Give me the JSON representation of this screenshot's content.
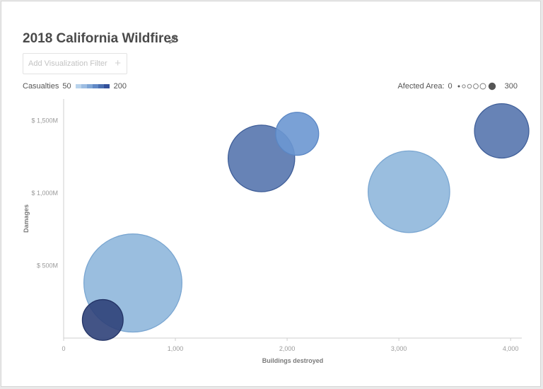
{
  "title": "2018 California Wildfires",
  "filter": {
    "placeholder": "Add Visualization Filter",
    "plus": "+"
  },
  "legend": {
    "casualties_label": "Casualties",
    "casualties_min": "50",
    "casualties_max": "200",
    "casualties_colors": [
      "#b9d3ec",
      "#9dbde2",
      "#7fa6d6",
      "#6189c6",
      "#4a6fb1",
      "#33509a"
    ],
    "area_label": "Afected Area:",
    "area_min": "0",
    "area_max": "300"
  },
  "chart_data": {
    "type": "scatter",
    "title": "2018 California Wildfires",
    "xlabel": "Buildings destroyed",
    "ylabel": "Damages",
    "xlim": [
      0,
      4100
    ],
    "ylim": [
      0,
      1650
    ],
    "x_ticks": [
      {
        "value": 0,
        "label": "0"
      },
      {
        "value": 1000,
        "label": "1,000"
      },
      {
        "value": 2000,
        "label": "2,000"
      },
      {
        "value": 3000,
        "label": "3,000"
      },
      {
        "value": 4000,
        "label": "4,000"
      }
    ],
    "y_ticks": [
      {
        "value": 500,
        "label": "$ 500M"
      },
      {
        "value": 1000,
        "label": "$ 1,000M"
      },
      {
        "value": 1500,
        "label": "$ 1,500M"
      }
    ],
    "points": [
      {
        "x": 620,
        "y": 380,
        "size": 260,
        "color": "#8fb7dc",
        "stroke": "#7aa6d1"
      },
      {
        "x": 1770,
        "y": 1240,
        "size": 120,
        "color": "#5676ae",
        "stroke": "#3f5e98"
      },
      {
        "x": 2090,
        "y": 1410,
        "size": 50,
        "color": "#6c97d2",
        "stroke": "#5a86c4"
      },
      {
        "x": 3090,
        "y": 1010,
        "size": 180,
        "color": "#8fb7dc",
        "stroke": "#7aa6d1"
      },
      {
        "x": 3920,
        "y": 1430,
        "size": 80,
        "color": "#5676ae",
        "stroke": "#3f5e98"
      },
      {
        "x": 350,
        "y": 125,
        "size": 45,
        "color": "#2f4179",
        "stroke": "#233365"
      }
    ]
  }
}
